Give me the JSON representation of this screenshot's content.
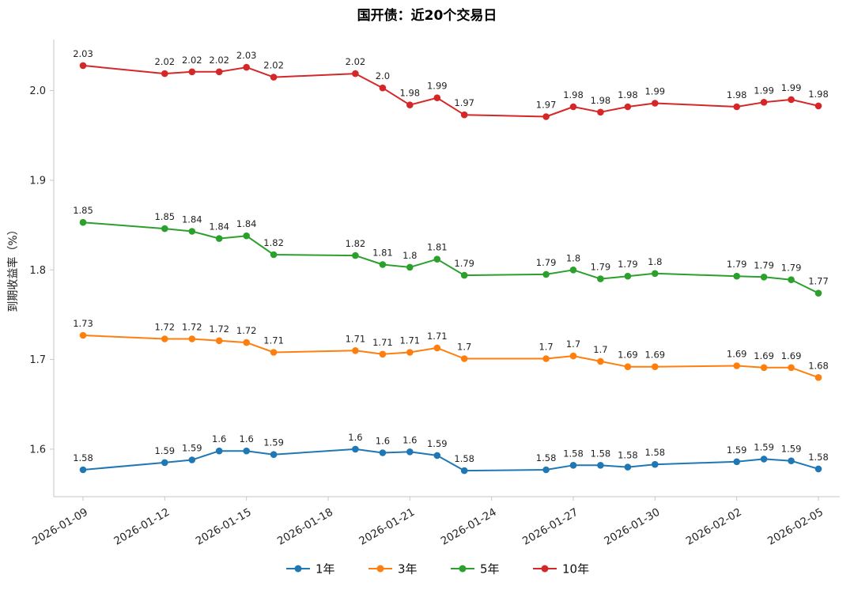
{
  "chart_data": {
    "type": "line",
    "title": "国开债：近20个交易日",
    "xlabel": "",
    "ylabel": "到期收益率（%）",
    "grid": false,
    "legend_position": "bottom-center",
    "ylim": [
      1.547,
      2.057
    ],
    "y_ticks": [
      1.6,
      1.7,
      1.8,
      1.9,
      2.0
    ],
    "x_dates": [
      "2026-01-09",
      "2026-01-12",
      "2026-01-13",
      "2026-01-14",
      "2026-01-15",
      "2026-01-16",
      "2026-01-19",
      "2026-01-20",
      "2026-01-21",
      "2026-01-22",
      "2026-01-23",
      "2026-01-26",
      "2026-01-27",
      "2026-01-28",
      "2026-01-29",
      "2026-01-30",
      "2026-02-02",
      "2026-02-03",
      "2026-02-04",
      "2026-02-05"
    ],
    "x_ticks": [
      "2026-01-09",
      "2026-01-12",
      "2026-01-15",
      "2026-01-18",
      "2026-01-21",
      "2026-01-24",
      "2026-01-27",
      "2026-01-30",
      "2026-02-02",
      "2026-02-05"
    ],
    "series": [
      {
        "name": "1年",
        "color": "#1f77b4",
        "values": [
          1.577,
          1.585,
          1.588,
          1.598,
          1.598,
          1.594,
          1.6,
          1.596,
          1.597,
          1.593,
          1.576,
          1.577,
          1.582,
          1.582,
          1.58,
          1.583,
          1.586,
          1.589,
          1.587,
          1.578
        ],
        "labels": [
          "1.58",
          "1.59",
          "1.59",
          "1.6",
          "1.6",
          "1.59",
          "1.6",
          "1.6",
          "1.6",
          "1.59",
          "1.58",
          "1.58",
          "1.58",
          "1.58",
          "1.58",
          "1.58",
          "1.59",
          "1.59",
          "1.59",
          "1.58"
        ]
      },
      {
        "name": "3年",
        "color": "#ff7f0e",
        "values": [
          1.727,
          1.723,
          1.723,
          1.721,
          1.719,
          1.708,
          1.71,
          1.706,
          1.708,
          1.713,
          1.701,
          1.701,
          1.704,
          1.698,
          1.692,
          1.692,
          1.693,
          1.691,
          1.691,
          1.68
        ],
        "labels": [
          "1.73",
          "1.72",
          "1.72",
          "1.72",
          "1.72",
          "1.71",
          "1.71",
          "1.71",
          "1.71",
          "1.71",
          "1.7",
          "1.7",
          "1.7",
          "1.7",
          "1.69",
          "1.69",
          "1.69",
          "1.69",
          "1.69",
          "1.68"
        ]
      },
      {
        "name": "5年",
        "color": "#2ca02c",
        "values": [
          1.853,
          1.846,
          1.843,
          1.835,
          1.838,
          1.817,
          1.816,
          1.806,
          1.803,
          1.812,
          1.794,
          1.795,
          1.8,
          1.79,
          1.793,
          1.796,
          1.793,
          1.792,
          1.789,
          1.774
        ],
        "labels": [
          "1.85",
          "1.85",
          "1.84",
          "1.84",
          "1.84",
          "1.82",
          "1.82",
          "1.81",
          "1.8",
          "1.81",
          "1.79",
          "1.79",
          "1.8",
          "1.79",
          "1.79",
          "1.8",
          "1.79",
          "1.79",
          "1.79",
          "1.77"
        ]
      },
      {
        "name": "10年",
        "color": "#d62728",
        "values": [
          2.028,
          2.019,
          2.021,
          2.021,
          2.026,
          2.015,
          2.019,
          2.003,
          1.984,
          1.992,
          1.973,
          1.971,
          1.982,
          1.976,
          1.982,
          1.986,
          1.982,
          1.987,
          1.99,
          1.983
        ],
        "labels": [
          "2.03",
          "2.02",
          "2.02",
          "2.02",
          "2.03",
          "2.02",
          "2.02",
          "2.0",
          "1.98",
          "1.99",
          "1.97",
          "1.97",
          "1.98",
          "1.98",
          "1.98",
          "1.99",
          "1.98",
          "1.99",
          "1.99",
          "1.98"
        ]
      }
    ]
  }
}
